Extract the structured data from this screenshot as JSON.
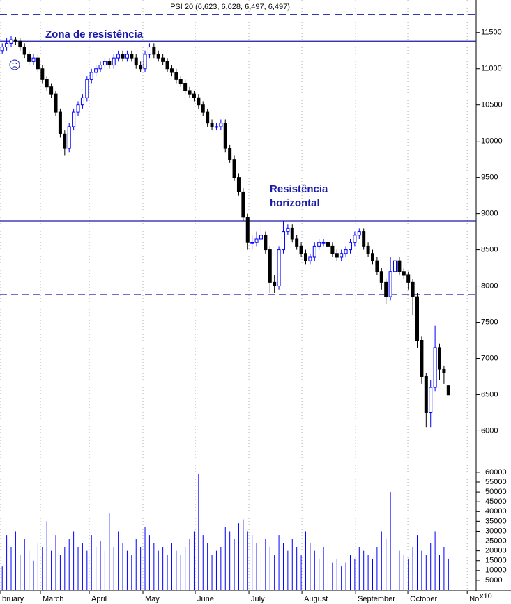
{
  "chart_data": [
    {
      "type": "candlestick",
      "title": "PSI 20 (6,623, 6,628, 6,497, 6,497)",
      "open": [
        11250,
        11300,
        11350,
        11400,
        11380,
        11300,
        11200,
        11100,
        11150,
        11000,
        10850,
        10750,
        10650,
        10400,
        10100,
        9900,
        10200,
        10400,
        10500,
        10600,
        10850,
        10950,
        11000,
        11050,
        11100,
        11050,
        11150,
        11200,
        11150,
        11200,
        11150,
        11050,
        11000,
        11200,
        11300,
        11200,
        11150,
        11100,
        11000,
        10950,
        10850,
        10800,
        10700,
        10650,
        10600,
        10500,
        10400,
        10250,
        10200,
        10200,
        10250,
        9900,
        9750,
        9500,
        9300,
        8950,
        8600,
        8600,
        8650,
        8700,
        8500,
        8050,
        8000,
        8500,
        8750,
        8800,
        8650,
        8550,
        8450,
        8350,
        8400,
        8550,
        8600,
        8600,
        8550,
        8450,
        8400,
        8450,
        8500,
        8600,
        8700,
        8750,
        8550,
        8450,
        8350,
        8200,
        8050,
        7850,
        8200,
        8350,
        8200,
        8150,
        8050,
        7850,
        7250,
        6750,
        6250,
        6600,
        7150,
        6850,
        6623
      ],
      "high": [
        11350,
        11420,
        11450,
        11440,
        11420,
        11350,
        11250,
        11200,
        11200,
        11050,
        10900,
        10800,
        10700,
        10450,
        10150,
        10250,
        10450,
        10550,
        10650,
        10900,
        11000,
        11050,
        11100,
        11150,
        11150,
        11200,
        11250,
        11250,
        11250,
        11250,
        11200,
        11100,
        11250,
        11350,
        11350,
        11250,
        11200,
        11150,
        11050,
        11000,
        10900,
        10850,
        10750,
        10700,
        10650,
        10550,
        10450,
        10300,
        10250,
        10300,
        10300,
        9950,
        9800,
        9550,
        9350,
        9000,
        8700,
        8750,
        8900,
        8750,
        8550,
        8150,
        8550,
        8900,
        8850,
        8850,
        8700,
        8600,
        8500,
        8450,
        8600,
        8650,
        8650,
        8650,
        8600,
        8500,
        8500,
        8550,
        8650,
        8750,
        8800,
        8800,
        8600,
        8500,
        8400,
        8250,
        8100,
        8400,
        8400,
        8400,
        8250,
        8200,
        8100,
        7900,
        7300,
        6800,
        6700,
        7450,
        7200,
        6900,
        6628
      ],
      "low": [
        11200,
        11250,
        11300,
        11330,
        11250,
        11150,
        11050,
        11050,
        10950,
        10800,
        10700,
        10600,
        10350,
        10050,
        9800,
        9850,
        10150,
        10350,
        10450,
        10550,
        10800,
        10900,
        10950,
        11000,
        11000,
        11000,
        11100,
        11100,
        11100,
        11100,
        11000,
        10950,
        10950,
        11150,
        11150,
        11100,
        11050,
        10950,
        10900,
        10800,
        10750,
        10650,
        10600,
        10550,
        10450,
        10350,
        10200,
        10150,
        10150,
        10150,
        9850,
        9700,
        9450,
        9250,
        8900,
        8500,
        8500,
        8550,
        8600,
        8450,
        7900,
        7900,
        7950,
        8450,
        8700,
        8600,
        8500,
        8400,
        8300,
        8300,
        8350,
        8500,
        8550,
        8500,
        8400,
        8350,
        8350,
        8400,
        8450,
        8550,
        8650,
        8500,
        8400,
        8300,
        8150,
        7950,
        7750,
        7800,
        8150,
        8150,
        8100,
        7950,
        7600,
        7150,
        6650,
        6050,
        6050,
        6550,
        6700,
        6650,
        6497
      ],
      "close": [
        11300,
        11350,
        11400,
        11380,
        11300,
        11200,
        11100,
        11150,
        11000,
        10850,
        10750,
        10650,
        10400,
        10100,
        9900,
        10200,
        10400,
        10500,
        10600,
        10850,
        10950,
        11000,
        11050,
        11100,
        11050,
        11150,
        11200,
        11150,
        11200,
        11150,
        11050,
        11000,
        11200,
        11300,
        11200,
        11150,
        11100,
        11000,
        10950,
        10850,
        10800,
        10700,
        10650,
        10600,
        10500,
        10400,
        10250,
        10200,
        10200,
        10250,
        9900,
        9750,
        9500,
        9300,
        8950,
        8600,
        8600,
        8650,
        8700,
        8500,
        8050,
        8000,
        8500,
        8750,
        8800,
        8650,
        8550,
        8450,
        8350,
        8400,
        8550,
        8600,
        8600,
        8550,
        8450,
        8400,
        8450,
        8500,
        8600,
        8700,
        8750,
        8550,
        8450,
        8350,
        8200,
        8050,
        7850,
        8200,
        8350,
        8200,
        8150,
        8050,
        7850,
        7250,
        6750,
        6250,
        6600,
        7150,
        6850,
        6800,
        6497
      ],
      "up_color": "#0000ff",
      "down_color": "#000000",
      "xlim": [
        -0.5,
        106.2
      ],
      "xticks": [
        {
          "value": -0.5,
          "label": "bruary"
        },
        {
          "value": 8.56,
          "label": "March"
        },
        {
          "value": 19.5,
          "label": "April"
        },
        {
          "value": 31.53,
          "label": "May"
        },
        {
          "value": 43.25,
          "label": "June"
        },
        {
          "value": 55.28,
          "label": "July"
        },
        {
          "value": 67.16,
          "label": "August"
        },
        {
          "value": 79.19,
          "label": "September"
        },
        {
          "value": 90.9,
          "label": "October"
        },
        {
          "value": 104.2,
          "label": "No"
        }
      ],
      "ylim": [
        5600,
        11950
      ],
      "yticks": [
        6000,
        6500,
        7000,
        7500,
        8000,
        8500,
        9000,
        9500,
        10000,
        10500,
        11000,
        11500
      ],
      "levels": [
        {
          "value": 11750,
          "style": "dashed"
        },
        {
          "value": 11380,
          "style": "solid"
        },
        {
          "value": 8900,
          "style": "solid"
        },
        {
          "value": 7880,
          "style": "dashed"
        }
      ],
      "level_color": "#1a1aa8",
      "annotations": [
        "Zona de resistência",
        "Resistência",
        "horizontal"
      ]
    },
    {
      "type": "bar",
      "values": [
        12000,
        28000,
        22000,
        30000,
        18000,
        26000,
        20000,
        15000,
        24000,
        22000,
        35000,
        20000,
        28000,
        18000,
        22000,
        26000,
        30000,
        22000,
        24000,
        20000,
        28000,
        22000,
        25000,
        20000,
        39000,
        22000,
        30000,
        24000,
        20000,
        18000,
        26000,
        22000,
        32000,
        28000,
        24000,
        20000,
        22000,
        18000,
        24000,
        20000,
        18000,
        22000,
        26000,
        30000,
        59000,
        28000,
        24000,
        18000,
        20000,
        22000,
        32000,
        30000,
        26000,
        34000,
        36000,
        30000,
        28000,
        24000,
        20000,
        26000,
        22000,
        18000,
        28000,
        24000,
        20000,
        26000,
        22000,
        18000,
        30000,
        24000,
        20000,
        16000,
        22000,
        18000,
        14000,
        16000,
        12000,
        14000,
        18000,
        16000,
        22000,
        20000,
        18000,
        16000,
        22000,
        30000,
        26000,
        50000,
        22000,
        20000,
        18000,
        16000,
        22000,
        28000,
        20000,
        18000,
        24000,
        30000,
        18000,
        22000,
        16000
      ],
      "color": "#0000ff",
      "ylim": [
        0,
        66000
      ],
      "yticks": [
        5000,
        10000,
        15000,
        20000,
        25000,
        30000,
        35000,
        40000,
        45000,
        50000,
        55000,
        60000
      ],
      "ylabel": "x10"
    }
  ]
}
